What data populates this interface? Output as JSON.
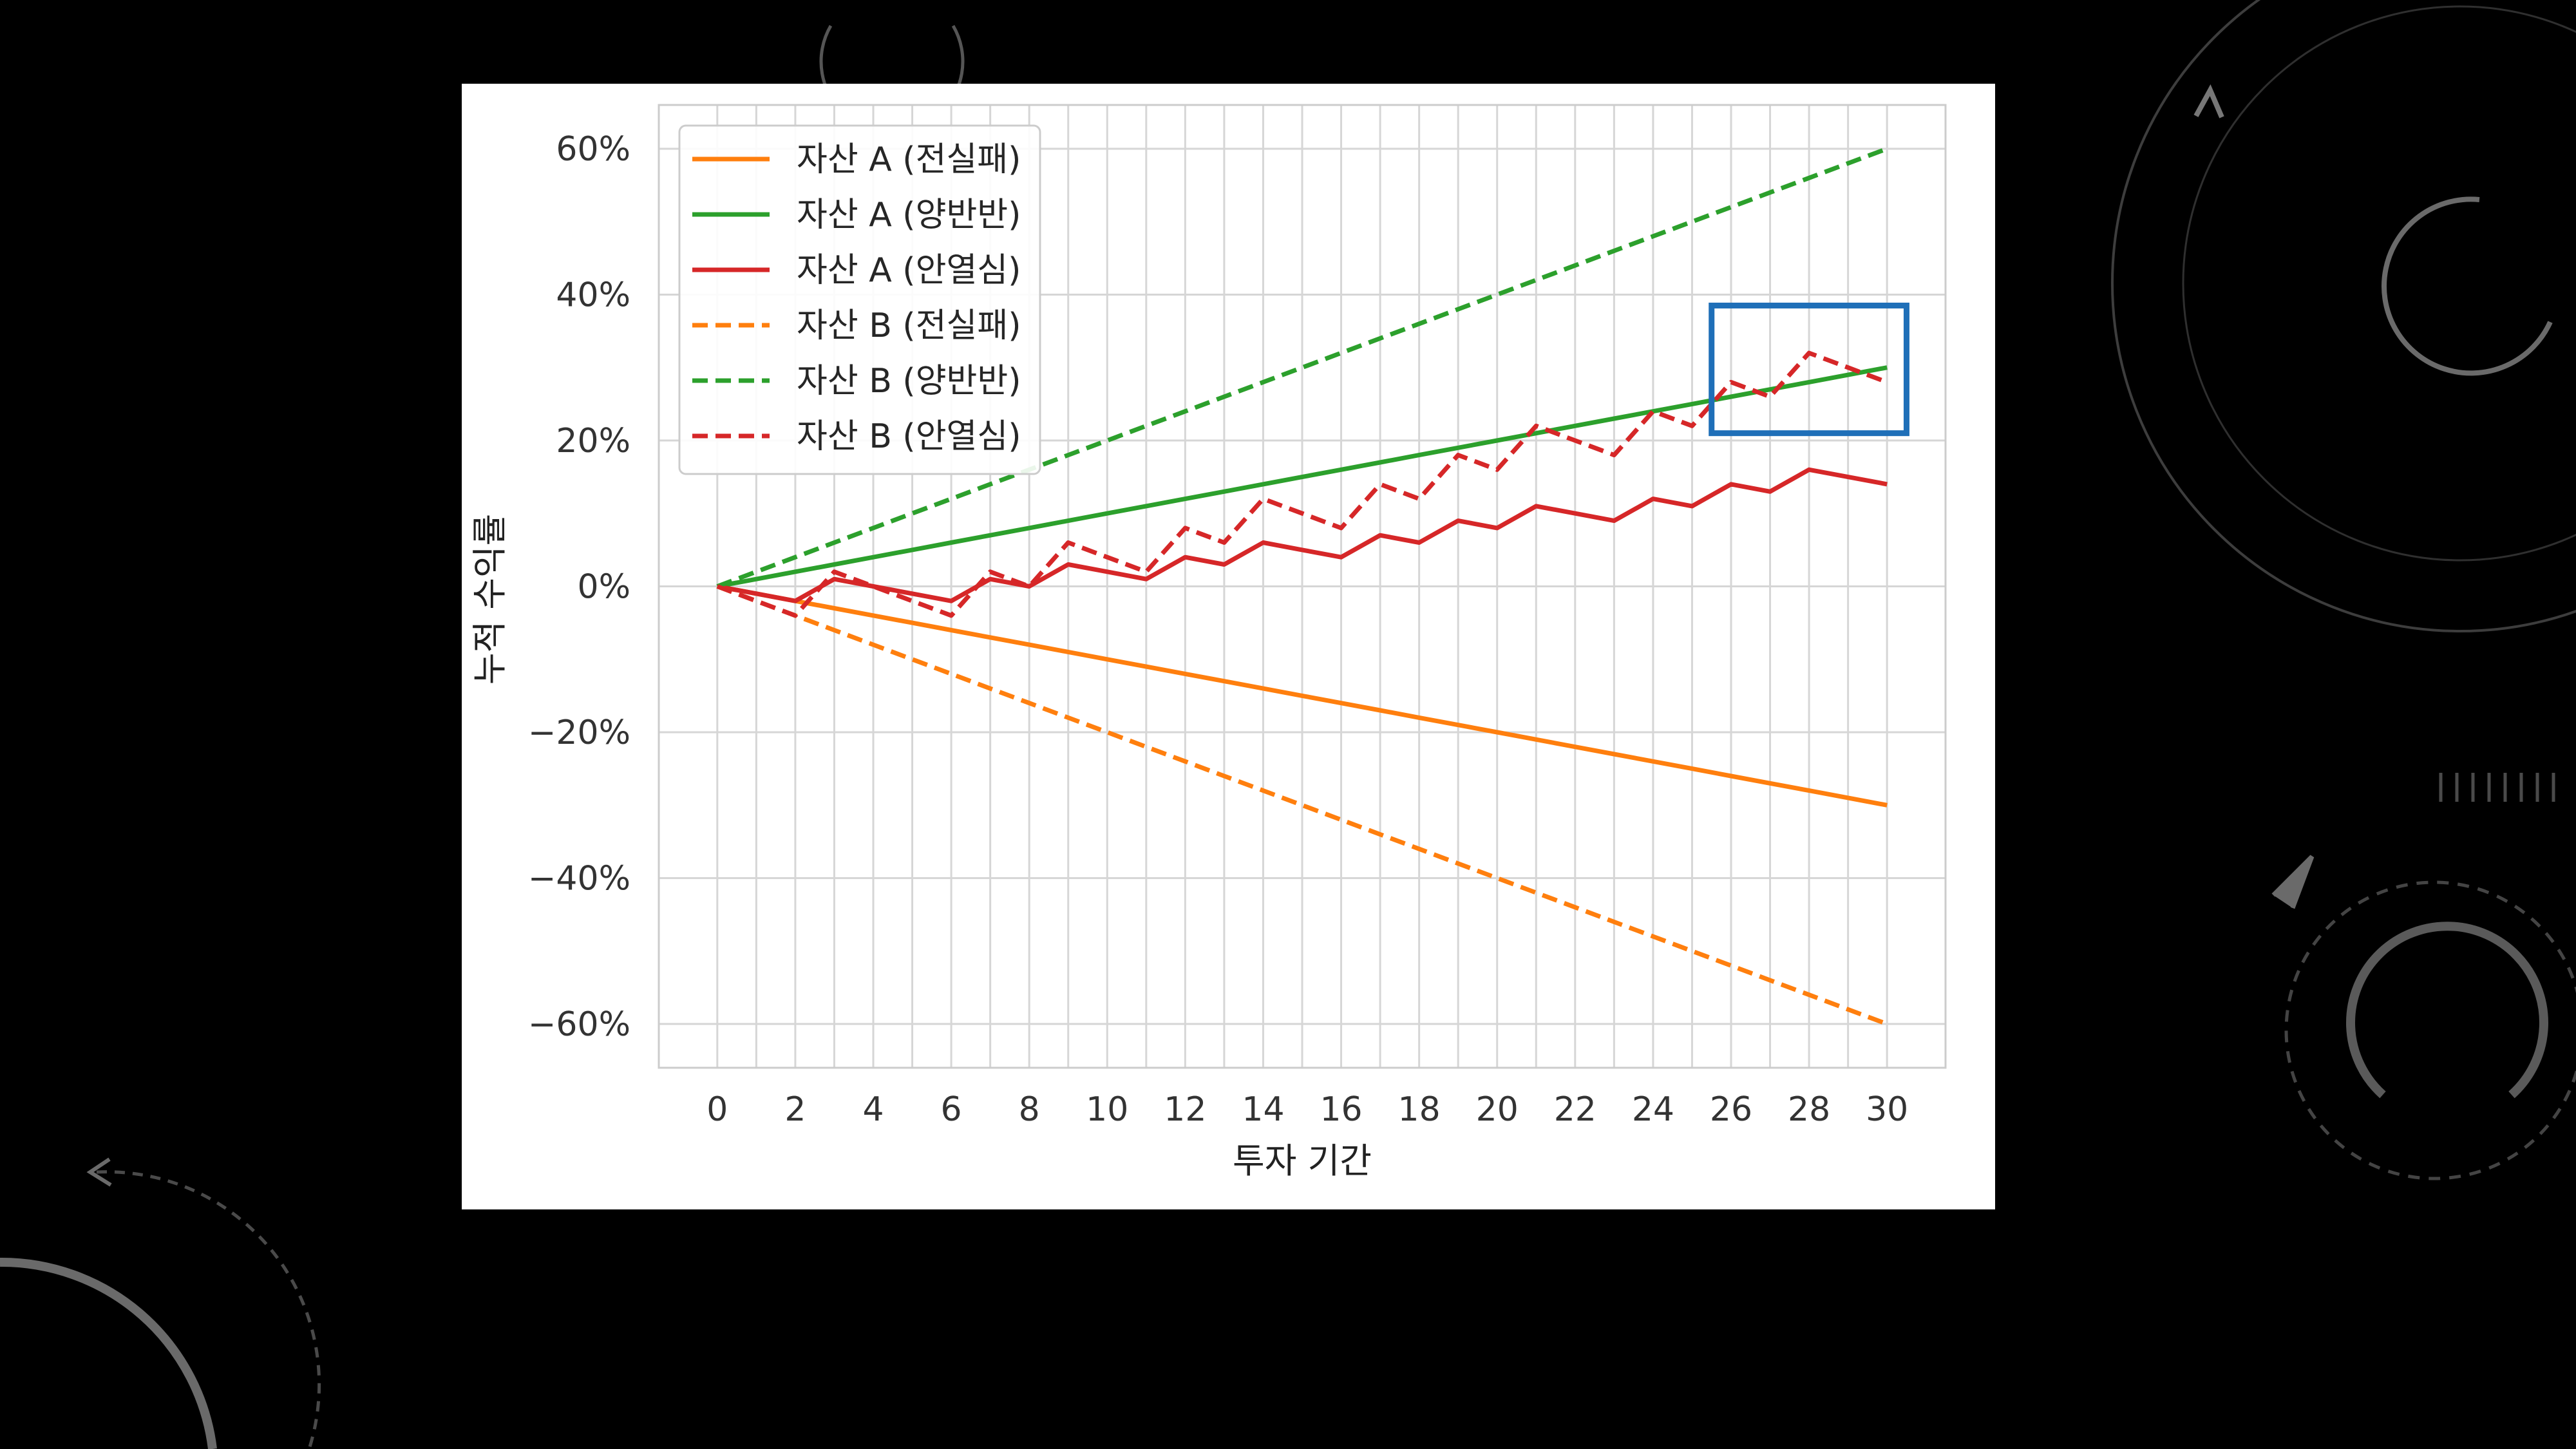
{
  "chart_data": {
    "type": "line",
    "title": "",
    "xlabel": "투자 기간",
    "ylabel": "누적 수익률",
    "xlim": [
      -1.5,
      31.5
    ],
    "ylim": [
      -66,
      66
    ],
    "x_ticks": [
      0,
      2,
      4,
      6,
      8,
      10,
      12,
      14,
      16,
      18,
      20,
      22,
      24,
      26,
      28,
      30
    ],
    "y_ticks": [
      -60,
      -40,
      -20,
      0,
      20,
      40,
      60
    ],
    "y_tick_labels": [
      "−60%",
      "−40%",
      "−20%",
      "0%",
      "20%",
      "40%",
      "60%"
    ],
    "grid": true,
    "legend_position": "top-left",
    "x": [
      0,
      1,
      2,
      3,
      4,
      5,
      6,
      7,
      8,
      9,
      10,
      11,
      12,
      13,
      14,
      15,
      16,
      17,
      18,
      19,
      20,
      21,
      22,
      23,
      24,
      25,
      26,
      27,
      28,
      29,
      30
    ],
    "series": [
      {
        "name": "자산 A (전실패)",
        "color": "#ff7f0e",
        "style": "solid",
        "values": [
          0,
          -1,
          -2,
          -3,
          -4,
          -5,
          -6,
          -7,
          -8,
          -9,
          -10,
          -11,
          -12,
          -13,
          -14,
          -15,
          -16,
          -17,
          -18,
          -19,
          -20,
          -21,
          -22,
          -23,
          -24,
          -25,
          -26,
          -27,
          -28,
          -29,
          -30
        ]
      },
      {
        "name": "자산 A (양반반)",
        "color": "#2ca02c",
        "style": "solid",
        "values": [
          0,
          1,
          2,
          3,
          4,
          5,
          6,
          7,
          8,
          9,
          10,
          11,
          12,
          13,
          14,
          15,
          16,
          17,
          18,
          19,
          20,
          21,
          22,
          23,
          24,
          25,
          26,
          27,
          28,
          29,
          30
        ]
      },
      {
        "name": "자산 A (안열심)",
        "color": "#d62728",
        "style": "solid",
        "values": [
          0,
          -1,
          -2,
          1,
          0,
          -1,
          -2,
          1,
          0,
          3,
          2,
          1,
          4,
          3,
          6,
          5,
          4,
          7,
          6,
          9,
          8,
          11,
          10,
          9,
          12,
          11,
          14,
          13,
          16,
          15,
          14
        ]
      },
      {
        "name": "자산 B (전실패)",
        "color": "#ff7f0e",
        "style": "dashed",
        "values": [
          0,
          -2,
          -4,
          -6,
          -8,
          -10,
          -12,
          -14,
          -16,
          -18,
          -20,
          -22,
          -24,
          -26,
          -28,
          -30,
          -32,
          -34,
          -36,
          -38,
          -40,
          -42,
          -44,
          -46,
          -48,
          -50,
          -52,
          -54,
          -56,
          -58,
          -60
        ]
      },
      {
        "name": "자산 B (양반반)",
        "color": "#2ca02c",
        "style": "dashed",
        "values": [
          0,
          2,
          4,
          6,
          8,
          10,
          12,
          14,
          16,
          18,
          20,
          22,
          24,
          26,
          28,
          30,
          32,
          34,
          36,
          38,
          40,
          42,
          44,
          46,
          48,
          50,
          52,
          54,
          56,
          58,
          60
        ]
      },
      {
        "name": "자산 B (안열심)",
        "color": "#d62728",
        "style": "dashed",
        "values": [
          0,
          -2,
          -4,
          2,
          0,
          -2,
          -4,
          2,
          0,
          6,
          4,
          2,
          8,
          6,
          12,
          10,
          8,
          14,
          12,
          18,
          16,
          22,
          20,
          18,
          24,
          22,
          28,
          26,
          32,
          30,
          28
        ]
      }
    ],
    "highlight": {
      "x_range": [
        25.5,
        30.5
      ],
      "y_range": [
        21,
        38.5
      ],
      "color": "#1f6fb8"
    }
  }
}
